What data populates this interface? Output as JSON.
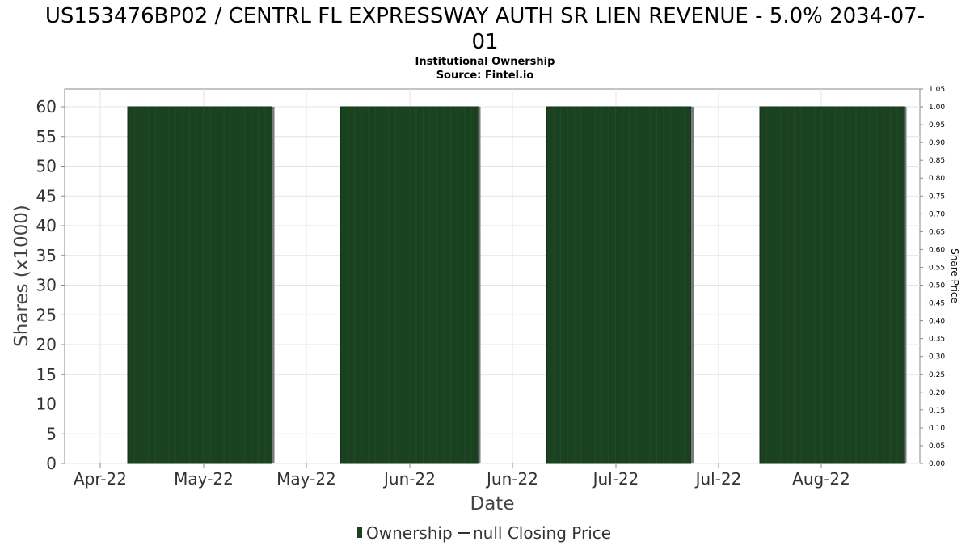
{
  "chart_data": {
    "type": "bar",
    "title_line1": "US153476BP02 / CENTRL FL EXPRESSWAY AUTH SR LIEN REVENUE - 5.0% 2034-07-",
    "title_line2": "01",
    "subtitle": "Institutional Ownership",
    "source": "Source: Fintel.io",
    "xlabel": "Date",
    "ylabel": "Shares (x1000)",
    "y2label": "Share Price",
    "x_ticks": [
      "Apr-22",
      "May-22",
      "May-22",
      "Jun-22",
      "Jun-22",
      "Jul-22",
      "Jul-22",
      "Aug-22"
    ],
    "ylim": [
      0,
      63
    ],
    "y_ticks": [
      0,
      5,
      10,
      15,
      20,
      25,
      30,
      35,
      40,
      45,
      50,
      55,
      60
    ],
    "y2lim": [
      0,
      1.05
    ],
    "y2_ticks": [
      "0.00",
      "0.05",
      "0.10",
      "0.15",
      "0.20",
      "0.25",
      "0.30",
      "0.35",
      "0.40",
      "0.45",
      "0.50",
      "0.55",
      "0.60",
      "0.65",
      "0.70",
      "0.75",
      "0.80",
      "0.85",
      "0.90",
      "0.95",
      "1.00",
      "1.05"
    ],
    "series": [
      {
        "name": "Ownership",
        "color": "#1a4220",
        "blocks": [
          {
            "start": "2022-04-05",
            "end": "2022-04-26",
            "value": 60
          },
          {
            "start": "2022-05-06",
            "end": "2022-05-26",
            "value": 60
          },
          {
            "start": "2022-06-05",
            "end": "2022-06-26",
            "value": 60
          },
          {
            "start": "2022-07-06",
            "end": "2022-07-27",
            "value": 60
          }
        ]
      }
    ],
    "legend": [
      {
        "label": "Ownership",
        "marker": "bar",
        "color": "#1a4220"
      },
      {
        "label": "null Closing Price",
        "marker": "line",
        "color": "#333333"
      }
    ],
    "legend_position": "bottom-center",
    "grid": true
  }
}
